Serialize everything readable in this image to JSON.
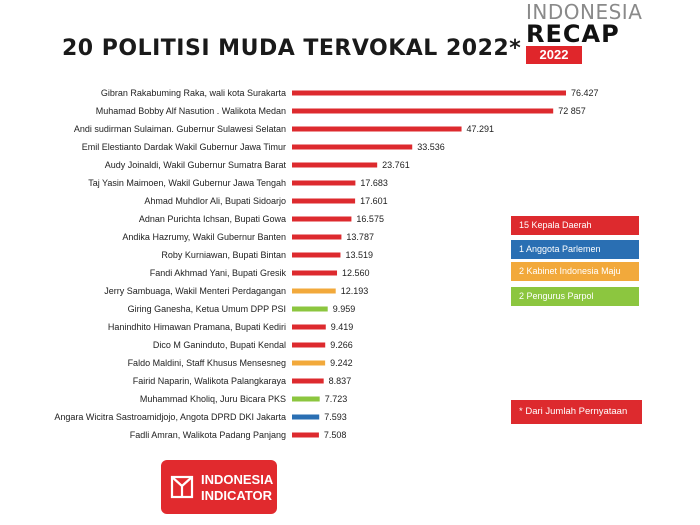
{
  "title": "20 POLITISI MUDA TERVOKAL 2022*",
  "brand": {
    "line1": "INDONESIA",
    "line2": "RECAP",
    "year": "2022"
  },
  "legend": [
    {
      "label": "15 Kepala Daerah",
      "color": "#dd2a2e"
    },
    {
      "label": "1 Anggota Parlemen",
      "color": "#2a6fb3"
    },
    {
      "label": "2 Kabinet Indonesia Maju",
      "color": "#f2a93b"
    },
    {
      "label": "2 Pengurus Parpol",
      "color": "#8cc63f"
    }
  ],
  "note": "* Dari Jumlah Pernyataan",
  "logo": {
    "line1": "INDONESIA",
    "line2": "INDICATOR"
  },
  "chart_data": {
    "type": "bar",
    "orientation": "horizontal",
    "categories": [
      "Gibran Rakabuming Raka, wali kota Surakarta",
      "Muhamad Bobby Alf Nasution . Walikota Medan",
      "Andi sudirman Sulaiman. Gubernur Sulawesi Selatan",
      "Emil Elestianto Dardak Wakil Gubernur Jawa Timur",
      "Audy Joinaldi, Wakil Gubernur Sumatra Barat",
      "Taj Yasin Maimoen, Wakil Gubernur Jawa Tengah",
      "Ahmad Muhdlor Ali, Bupati Sidoarjo",
      "Adnan Purichta Ichsan, Bupati Gowa",
      "Andika Hazrumy, Wakil Gubernur Banten",
      "Roby Kurniawan, Bupati Bintan",
      "Fandi Akhmad Yani, Bupati Gresik",
      "Jerry Sambuaga, Wakil Menteri Perdagangan",
      "Giring Ganesha, Ketua Umum DPP PSI",
      "Hanindhito Himawan Pramana, Bupati Kediri",
      "Dico M Ganinduto, Bupati Kendal",
      "Faldo Maldini, Staff Khusus Mensesneg",
      "Fairid Naparin, Walikota Palangkaraya",
      "Muhammad Kholiq, Juru Bicara PKS",
      "Angara Wicitra Sastroamidjojo, Angota DPRD DKI Jakarta",
      "Fadli Amran, Walikota Padang Panjang"
    ],
    "values": [
      76427,
      72857,
      47291,
      33536,
      23761,
      17683,
      17601,
      16575,
      13787,
      13519,
      12560,
      12193,
      9959,
      9419,
      9266,
      9242,
      8837,
      7723,
      7593,
      7508
    ],
    "value_labels": [
      "76.427",
      "72 857",
      "47.291",
      "33.536",
      "23.761",
      "17.683",
      "17.601",
      "16.575",
      "13.787",
      "13.519",
      "12.560",
      "12.193",
      "9.959",
      "9.419",
      "9.266",
      "9.242",
      "8.837",
      "7.723",
      "7.593",
      "7.508"
    ],
    "groups": [
      "Kepala Daerah",
      "Kepala Daerah",
      "Kepala Daerah",
      "Kepala Daerah",
      "Kepala Daerah",
      "Kepala Daerah",
      "Kepala Daerah",
      "Kepala Daerah",
      "Kepala Daerah",
      "Kepala Daerah",
      "Kepala Daerah",
      "Kabinet Indonesia Maju",
      "Pengurus Parpol",
      "Kepala Daerah",
      "Kepala Daerah",
      "Kabinet Indonesia Maju",
      "Kepala Daerah",
      "Pengurus Parpol",
      "Anggota Parlemen",
      "Kepala Daerah"
    ],
    "group_colors": {
      "Kepala Daerah": "#dd2a2e",
      "Anggota Parlemen": "#2a6fb3",
      "Kabinet Indonesia Maju": "#f2a93b",
      "Pengurus Parpol": "#8cc63f"
    },
    "xlim": [
      0,
      80000
    ],
    "grid": false
  }
}
